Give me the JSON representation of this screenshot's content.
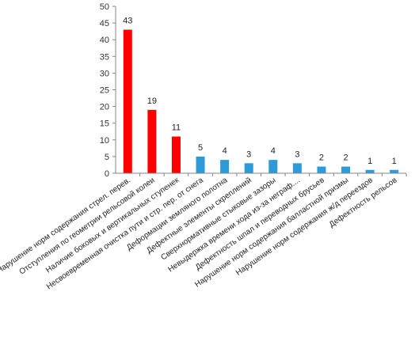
{
  "chart_data": {
    "type": "bar",
    "title": "",
    "xlabel": "",
    "ylabel": "",
    "ylim": [
      0,
      50
    ],
    "yticks": [
      0,
      5,
      10,
      15,
      20,
      25,
      30,
      35,
      40,
      45,
      50
    ],
    "grid": false,
    "legend": "none",
    "categories": [
      "Нарушение норм содержания стрел. перев.",
      "Отступления по геометрии рельсовой колеи",
      "Наличие боковых и вертикальных ступенек",
      "Несвоевременная очистка пути и стр. пер. от снега",
      "Деформации земляного полотна",
      "Дефектные элементы скреплений",
      "Сверхнормативные стыковые зазоры",
      "Невыдержка времени хода из-за неграф....",
      "Дефектность шпал и переводных брусьев",
      "Нарушение норм содержания балластной призмы",
      "Нарушение норм содержания ж/д переездов",
      "Дефектность рельсов"
    ],
    "values": [
      43,
      19,
      11,
      5,
      4,
      3,
      4,
      3,
      2,
      2,
      1,
      1
    ],
    "bar_colors": [
      "#ff0000",
      "#ff0000",
      "#ff0000",
      "#2e9bd6",
      "#2e9bd6",
      "#2e9bd6",
      "#2e9bd6",
      "#2e9bd6",
      "#2e9bd6",
      "#2e9bd6",
      "#2e9bd6",
      "#2e9bd6"
    ],
    "axis_color": "#868686"
  }
}
